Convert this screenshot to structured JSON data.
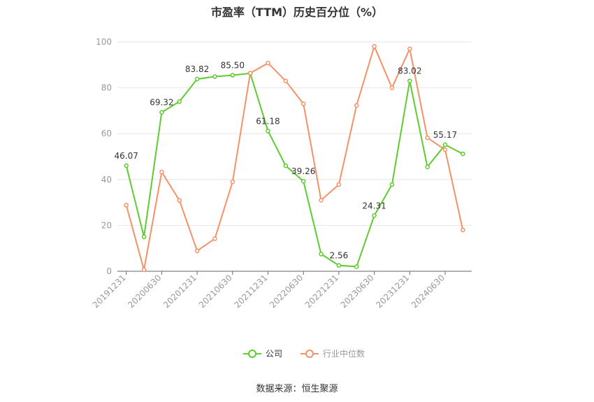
{
  "title": "市盈率（TTM）历史百分位（%）",
  "source": "数据来源：恒生聚源",
  "chart_data": {
    "type": "line",
    "ylim": [
      0,
      100
    ],
    "yticks": [
      0,
      20,
      40,
      60,
      80,
      100
    ],
    "x": [
      "20191231",
      "20200331",
      "20200630",
      "20200930",
      "20201231",
      "20210331",
      "20210630",
      "20210930",
      "20211231",
      "20220331",
      "20220630",
      "20220930",
      "20221231",
      "20230331",
      "20230630",
      "20230930",
      "20231231",
      "20240331",
      "20240630",
      "20240930"
    ],
    "x_tick_labels": [
      "20191231",
      "20200630",
      "20201231",
      "20210630",
      "20211231",
      "20220630",
      "20221231",
      "20230630",
      "20231231",
      "20240630"
    ],
    "grid": true,
    "legend_position": "bottom",
    "series": [
      {
        "name": "公司",
        "color": "#5ecb2f",
        "values": [
          46.07,
          15,
          69.32,
          74,
          83.82,
          84.9,
          85.5,
          86.3,
          61.18,
          46,
          39.26,
          7.5,
          2.56,
          2,
          24.31,
          37.8,
          83.02,
          45.5,
          55.17,
          51.2
        ],
        "labels": [
          "46.07",
          null,
          "69.32",
          null,
          "83.82",
          null,
          "85.50",
          null,
          "61.18",
          null,
          "39.26",
          null,
          "2.56",
          null,
          "24.31",
          null,
          "83.02",
          null,
          "55.17",
          null
        ]
      },
      {
        "name": "行业中位数",
        "color": "#f59167",
        "values": [
          28.8,
          0.6,
          43.3,
          30.9,
          8.9,
          14.2,
          39,
          86.4,
          90.8,
          83,
          73,
          31,
          37.8,
          72.3,
          98.1,
          80,
          97,
          58.2,
          53,
          18
        ]
      }
    ]
  }
}
